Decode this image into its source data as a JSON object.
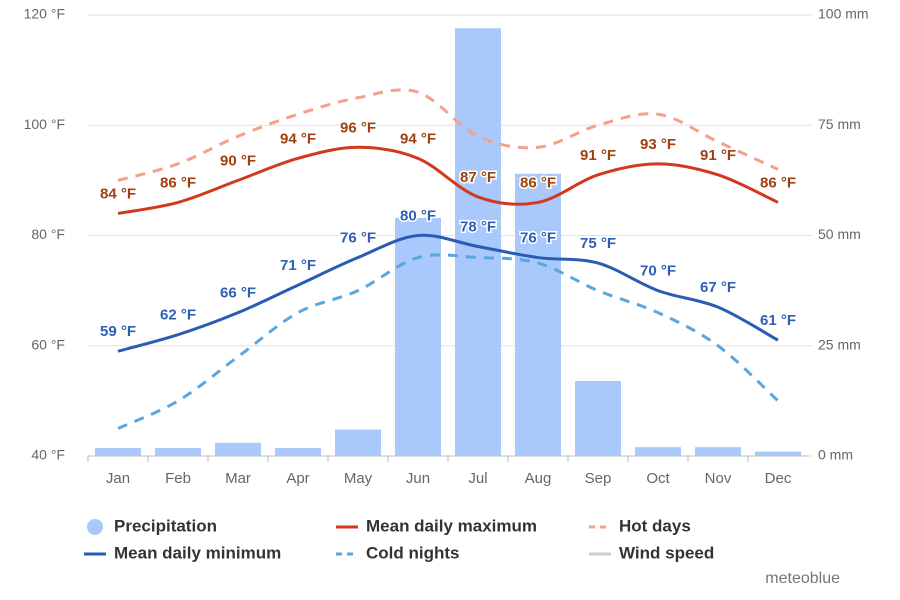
{
  "chart_data": {
    "type": "combo",
    "categories": [
      "Jan",
      "Feb",
      "Mar",
      "Apr",
      "May",
      "Jun",
      "Jul",
      "Aug",
      "Sep",
      "Oct",
      "Nov",
      "Dec"
    ],
    "ylim": [
      40,
      120
    ],
    "yticks": [
      {
        "value": 40,
        "label": "40 °F"
      },
      {
        "value": 60,
        "label": "60 °F"
      },
      {
        "value": 80,
        "label": "80 °F"
      },
      {
        "value": 100,
        "label": "100 °F"
      },
      {
        "value": 120,
        "label": "120 °F"
      }
    ],
    "y2lim": [
      0,
      100
    ],
    "y2ticks": [
      {
        "value": 0,
        "label": "0 mm"
      },
      {
        "value": 25,
        "label": "25 mm"
      },
      {
        "value": 50,
        "label": "50 mm"
      },
      {
        "value": 75,
        "label": "75 mm"
      },
      {
        "value": 100,
        "label": "100 mm"
      }
    ],
    "grid": true,
    "series": [
      {
        "name": "Precipitation",
        "type": "bar",
        "axis": "y2",
        "color": "#a9c8fb",
        "values": [
          1.8,
          1.8,
          3,
          1.8,
          6,
          54,
          97,
          64,
          17,
          2,
          2,
          1
        ]
      },
      {
        "name": "Mean daily maximum",
        "type": "line",
        "color": "#d2381b",
        "label_color": "#a0400f",
        "values": [
          84,
          86,
          90,
          94,
          96,
          94,
          87,
          86,
          91,
          93,
          91,
          86
        ],
        "value_labels": [
          "84 °F",
          "86 °F",
          "90 °F",
          "94 °F",
          "96 °F",
          "94 °F",
          "87 °F",
          "86 °F",
          "91 °F",
          "93 °F",
          "91 °F",
          "86 °F"
        ]
      },
      {
        "name": "Hot days",
        "type": "dashed",
        "color": "#f4a08a",
        "values": [
          90,
          93,
          98,
          102,
          105,
          106,
          98,
          96,
          100,
          102,
          97,
          92
        ]
      },
      {
        "name": "Mean daily minimum",
        "type": "line",
        "color": "#2a5bb5",
        "label_color": "#2f5fb4",
        "values": [
          59,
          62,
          66,
          71,
          76,
          80,
          78,
          76,
          75,
          70,
          67,
          61
        ],
        "value_labels": [
          "59 °F",
          "62 °F",
          "66 °F",
          "71 °F",
          "76 °F",
          "80 °F",
          "78 °F",
          "76 °F",
          "75 °F",
          "70 °F",
          "67 °F",
          "61 °F"
        ]
      },
      {
        "name": "Cold nights",
        "type": "dashed",
        "color": "#5aa6e0",
        "values": [
          45,
          50,
          58,
          66,
          70,
          76,
          76,
          75,
          70,
          66,
          60,
          50
        ]
      },
      {
        "name": "Wind speed",
        "type": "line",
        "color": "#cccccc",
        "hidden": true
      }
    ],
    "watermark": "meteoblue"
  }
}
